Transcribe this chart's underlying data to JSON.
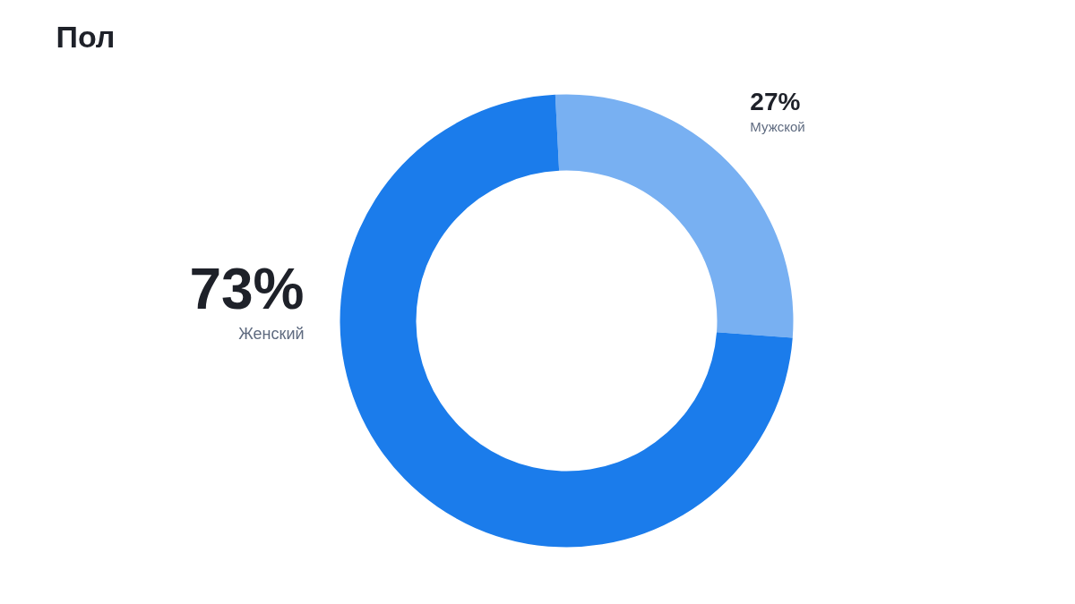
{
  "chart_data": {
    "type": "donut",
    "title": "Пол",
    "categories": [
      "Мужской",
      "Женский"
    ],
    "values": [
      27,
      73
    ],
    "colors": [
      "#78b0f2",
      "#1b7ceb"
    ],
    "value_labels": [
      "27%",
      "73%"
    ]
  }
}
